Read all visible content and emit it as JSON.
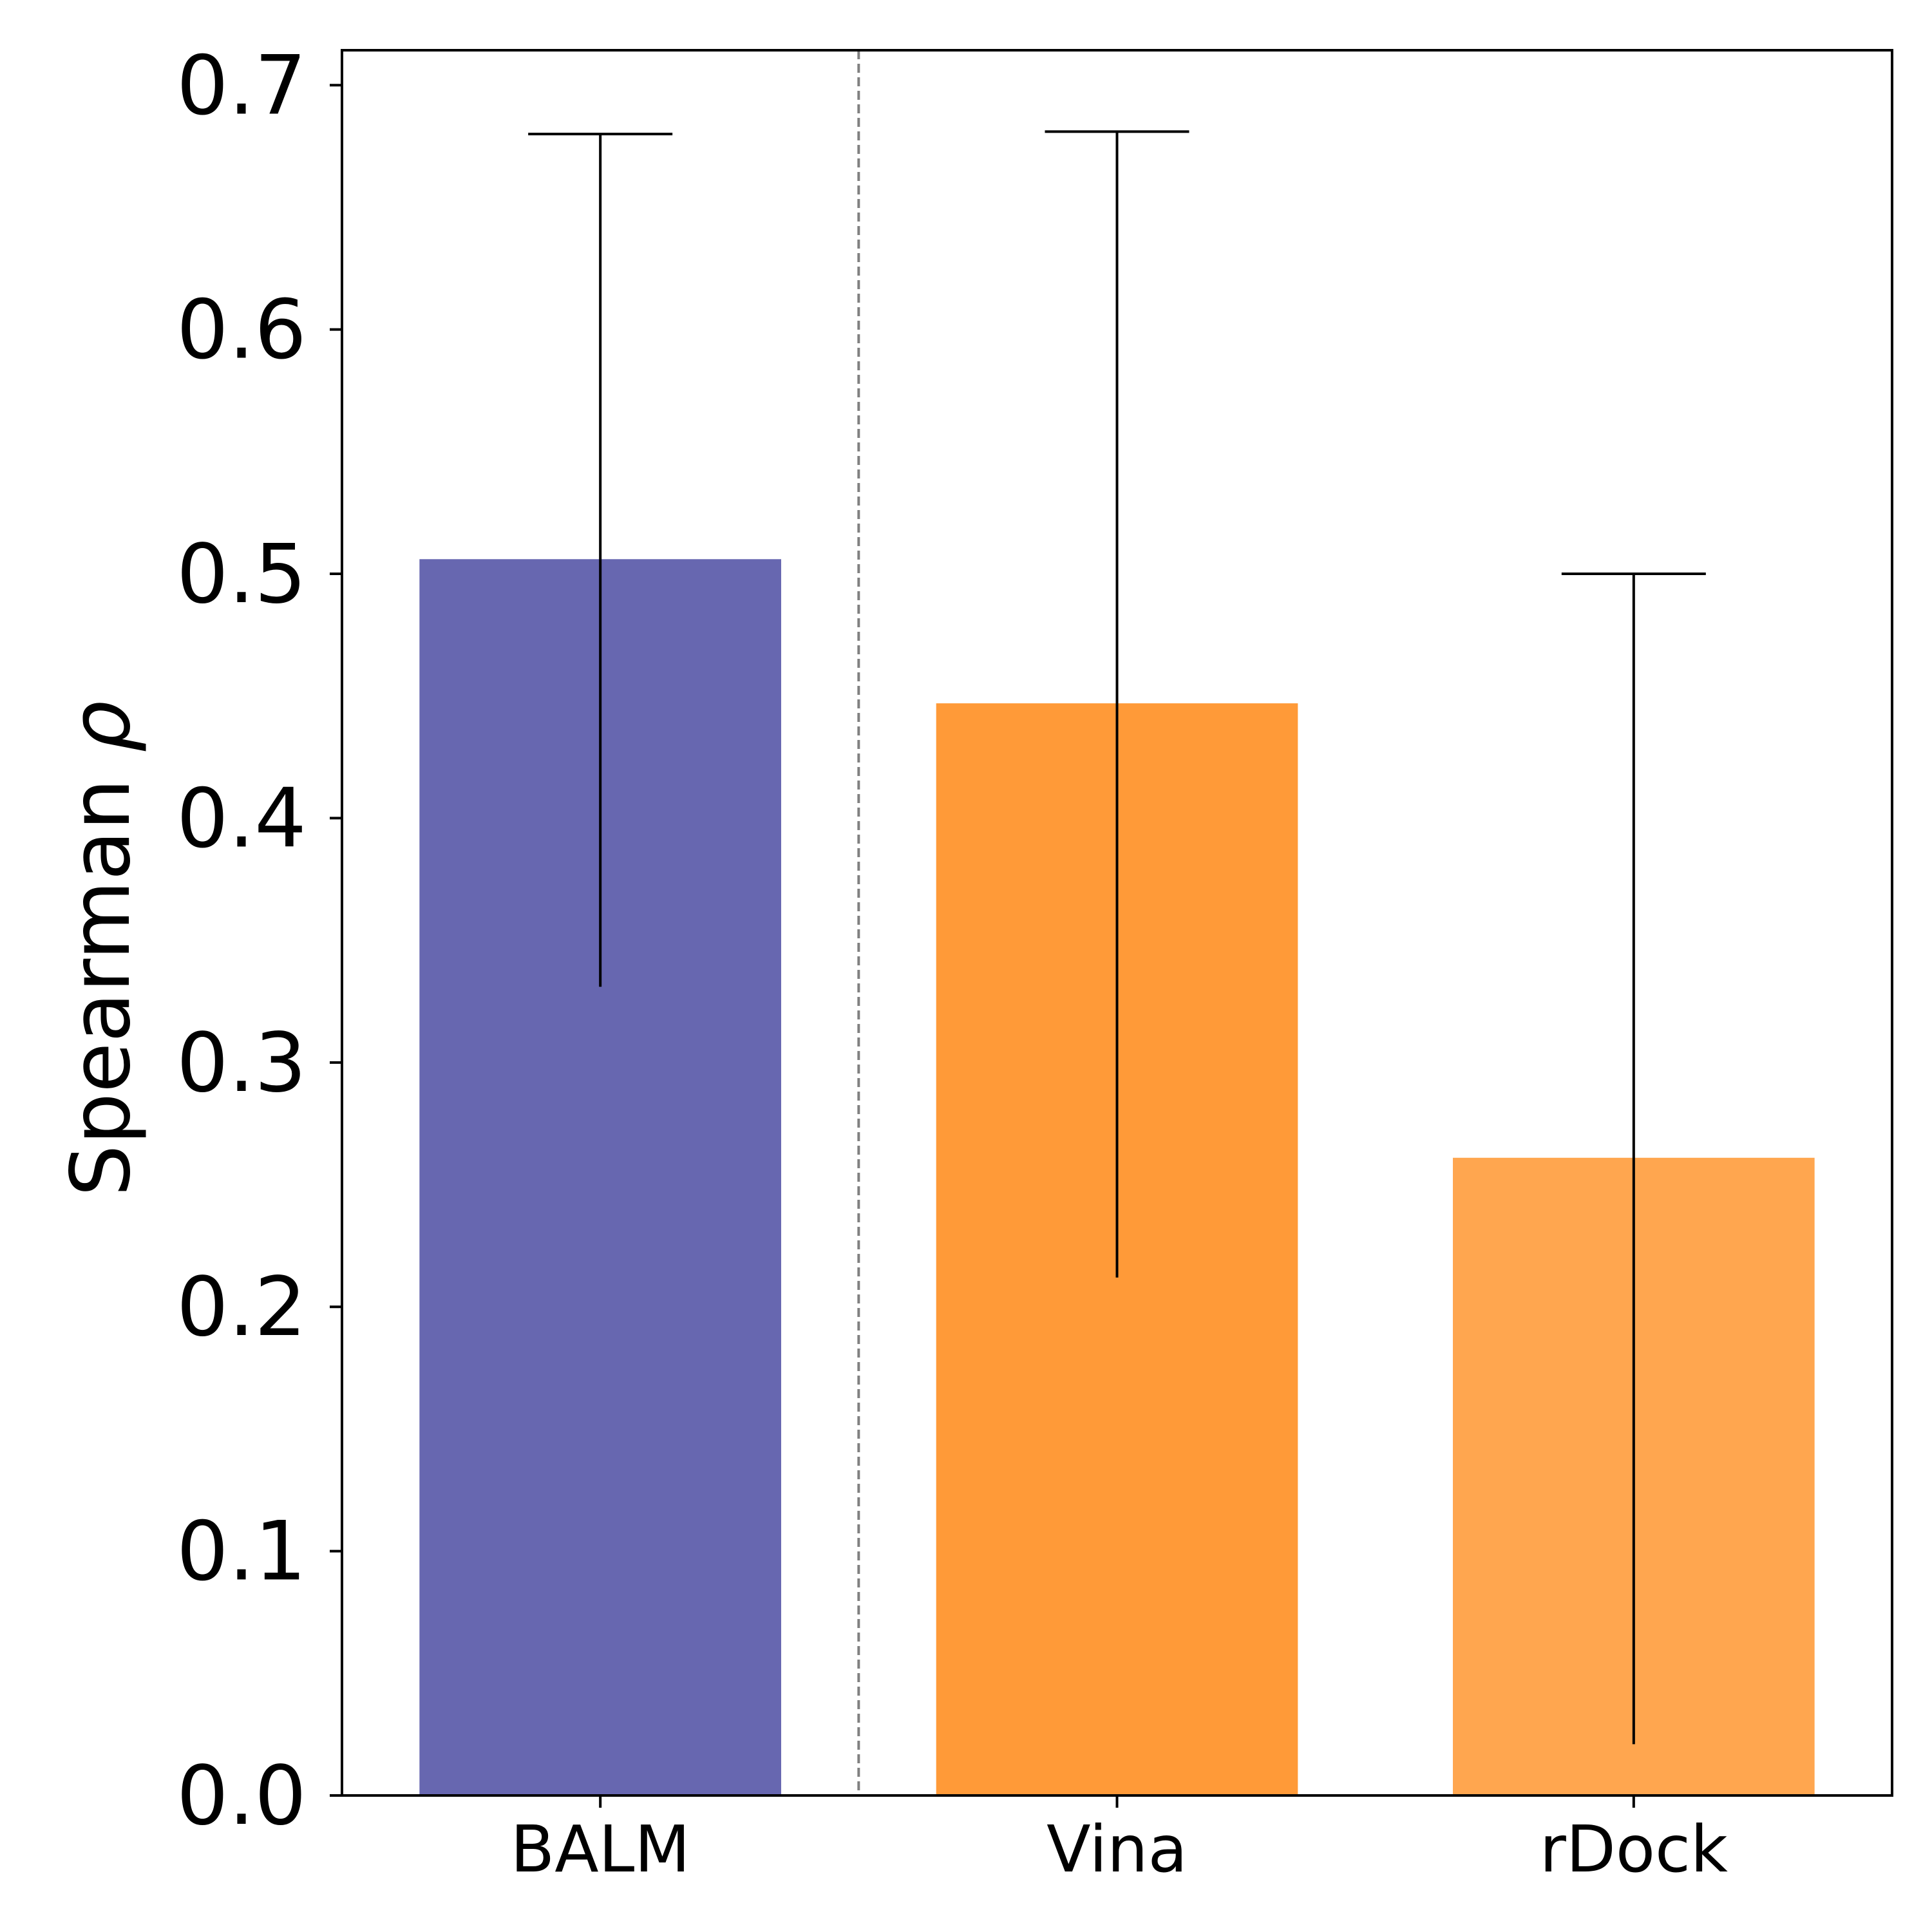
{
  "chart_data": {
    "type": "bar",
    "title": "",
    "xlabel": "",
    "ylabel": "Spearman ρ",
    "ylabel_prefix": "Spearman ",
    "ylabel_symbol": "ρ",
    "ylim": [
      0.0,
      0.7143
    ],
    "yticks": [
      0.0,
      0.1,
      0.2,
      0.3,
      0.4,
      0.5,
      0.6,
      0.7
    ],
    "ytick_labels": [
      "0.0",
      "0.1",
      "0.2",
      "0.3",
      "0.4",
      "0.5",
      "0.6",
      "0.7"
    ],
    "categories": [
      "BALM",
      "Vina",
      "rDock"
    ],
    "values": [
      0.506,
      0.447,
      0.261
    ],
    "error_low": [
      0.331,
      0.212,
      0.021
    ],
    "error_high": [
      0.68,
      0.681,
      0.5
    ],
    "colors": [
      "#6767b0",
      "#ff9a38",
      "#ffa64f"
    ],
    "separator_after_category": 0,
    "grid": false,
    "legend": "none"
  }
}
